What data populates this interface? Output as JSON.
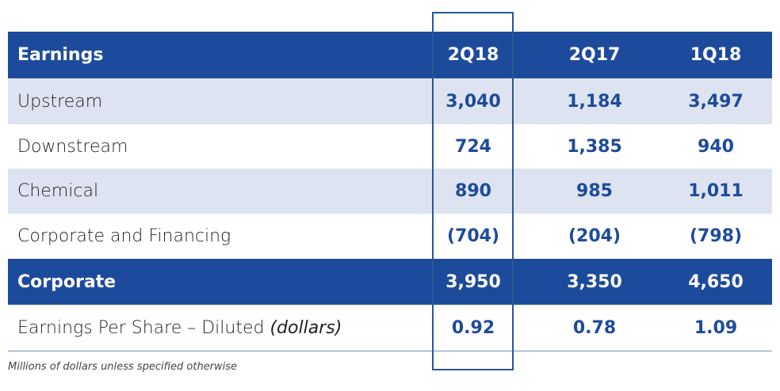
{
  "table": {
    "header": {
      "label": "Earnings",
      "columns": [
        "2Q18",
        "2Q17",
        "1Q18"
      ]
    },
    "rows": [
      {
        "label": "Upstream",
        "values": [
          "3,040",
          "1,184",
          "3,497"
        ]
      },
      {
        "label": "Downstream",
        "values": [
          "724",
          "1,385",
          "940"
        ]
      },
      {
        "label": "Chemical",
        "values": [
          "890",
          "985",
          "1,011"
        ]
      },
      {
        "label": "Corporate and Financing",
        "values": [
          "(704)",
          "(204)",
          "(798)"
        ]
      },
      {
        "label": "Corporate",
        "values": [
          "3,950",
          "3,350",
          "4,650"
        ]
      },
      {
        "label": "Earnings Per Share – Diluted",
        "label_note": "(dollars)",
        "values": [
          "0.92",
          "0.78",
          "1.09"
        ]
      }
    ],
    "footnote": "Millions of dollars unless specified otherwise"
  }
}
